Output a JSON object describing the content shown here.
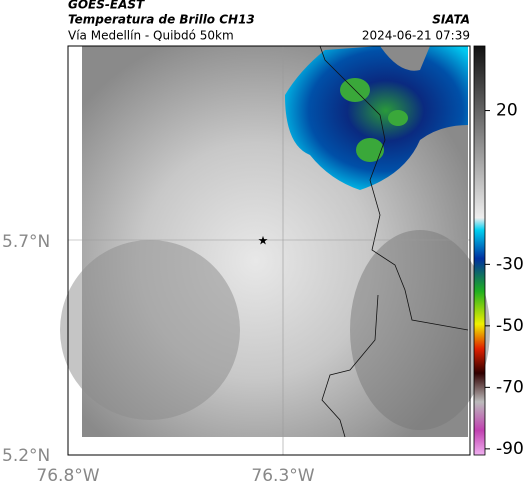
{
  "header": {
    "satellite": "GOES-EAST",
    "product": "Temperatura de Brillo CH13",
    "region": "Vía Medellín - Quibdó 50km",
    "source": "SIATA",
    "timestamp": "2024-06-21 07:39"
  },
  "axes": {
    "lat_ticks": [
      "5.7°N",
      "5.2°N"
    ],
    "lon_ticks": [
      "76.8°W",
      "76.3°W"
    ]
  },
  "colorbar": {
    "lim": [
      41,
      -92
    ],
    "ticks": [
      20,
      -30,
      -50,
      -70,
      -90
    ]
  }
}
